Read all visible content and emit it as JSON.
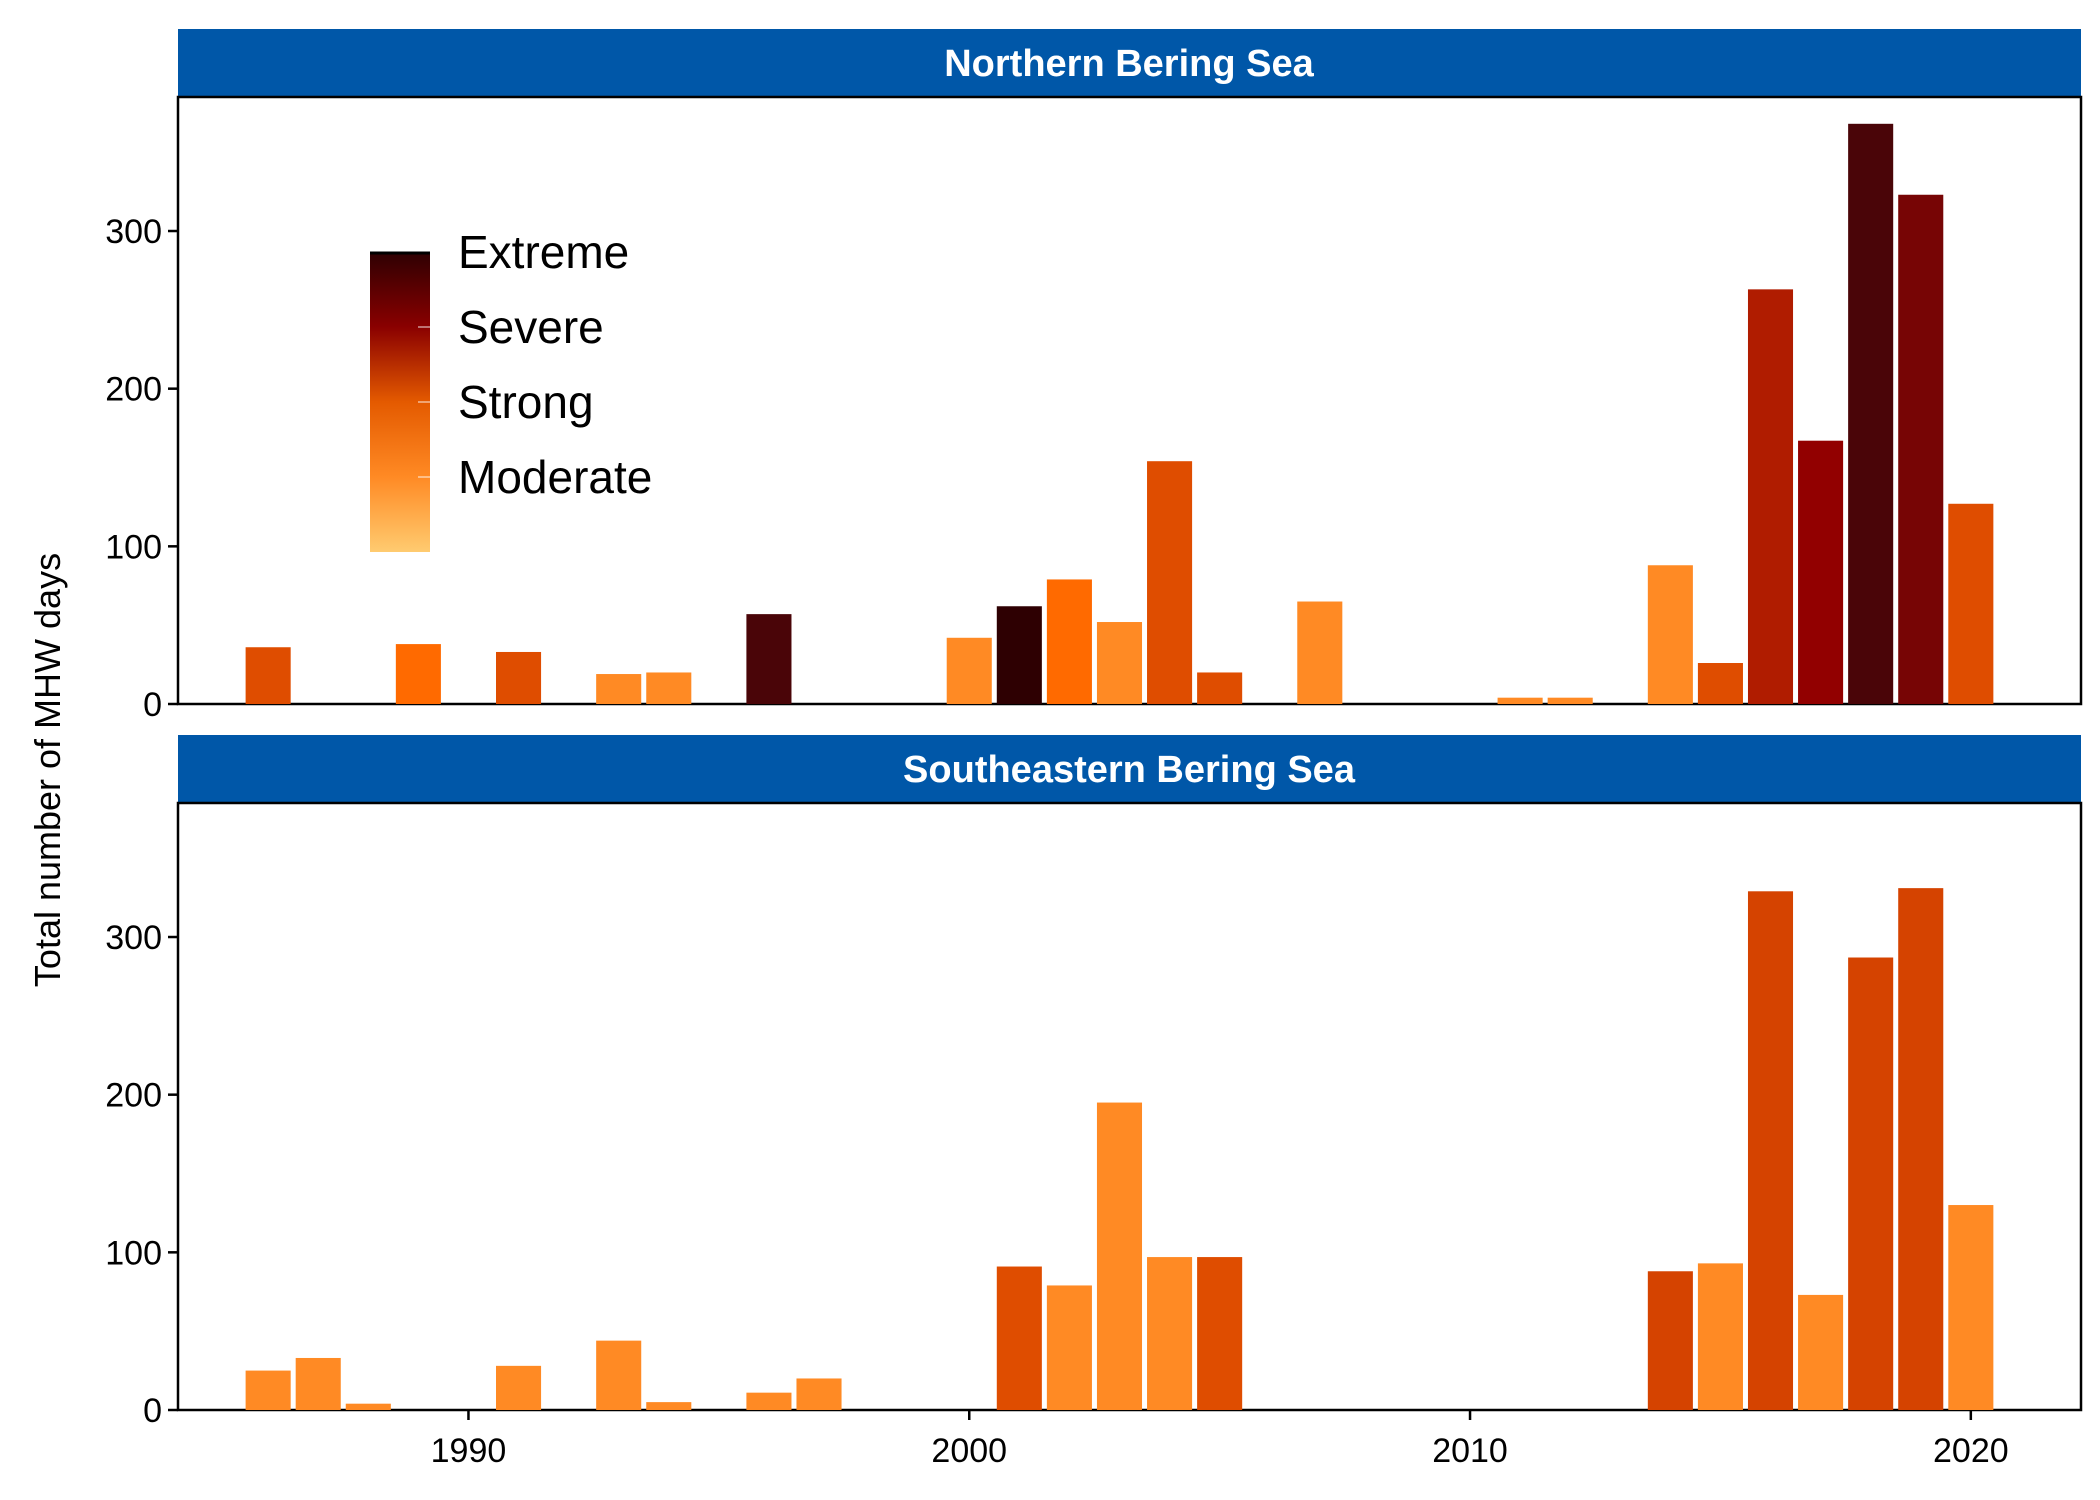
{
  "colors": {
    "strip": "#0057A8",
    "strip_text": "#ffffff",
    "moderate": "#FF8A24",
    "strong": "#DF4D00",
    "strong_orange": "#FF6A00",
    "strong_dark": "#D54300",
    "severe": "#B01C00",
    "severe_dark": "#920000",
    "severe_deep": "#770505",
    "extreme": "#4A0508",
    "extreme_deep": "#2E0002",
    "legend_gradient": [
      "#2E0002",
      "#8A0000",
      "#E45A00",
      "#FF8A24",
      "#FFCB70"
    ]
  },
  "chart_data": {
    "type": "bar",
    "ylabel": "Total number of MHW days",
    "xlim": [
      1984.2,
      2022.2
    ],
    "ylim": [
      0,
      385
    ],
    "xticks": [
      1990,
      2000,
      2010,
      2020
    ],
    "xtick_labels": [
      "1990",
      "2000",
      "2010",
      "2020"
    ],
    "yticks": [
      0,
      100,
      200,
      300
    ],
    "ytick_labels": [
      "0",
      "100",
      "200",
      "300"
    ],
    "legend": {
      "placement": "top-left inside top panel",
      "entries": [
        "Extreme",
        "Severe",
        "Strong",
        "Moderate"
      ]
    },
    "panels": [
      {
        "title": "Northern Bering Sea",
        "bars": [
          {
            "x": 1986,
            "value": 36,
            "category": "strong"
          },
          {
            "x": 1989,
            "value": 38,
            "category": "strong_orange"
          },
          {
            "x": 1991,
            "value": 33,
            "category": "strong"
          },
          {
            "x": 1993,
            "value": 19,
            "category": "moderate"
          },
          {
            "x": 1994,
            "value": 20,
            "category": "moderate"
          },
          {
            "x": 1996,
            "value": 57,
            "category": "extreme"
          },
          {
            "x": 2000,
            "value": 42,
            "category": "moderate"
          },
          {
            "x": 2001,
            "value": 62,
            "category": "extreme_deep"
          },
          {
            "x": 2002,
            "value": 79,
            "category": "strong_orange"
          },
          {
            "x": 2003,
            "value": 52,
            "category": "moderate"
          },
          {
            "x": 2004,
            "value": 154,
            "category": "strong"
          },
          {
            "x": 2005,
            "value": 20,
            "category": "strong"
          },
          {
            "x": 2007,
            "value": 65,
            "category": "moderate"
          },
          {
            "x": 2011,
            "value": 4,
            "category": "moderate"
          },
          {
            "x": 2012,
            "value": 4,
            "category": "moderate"
          },
          {
            "x": 2014,
            "value": 88,
            "category": "moderate"
          },
          {
            "x": 2015,
            "value": 26,
            "category": "strong"
          },
          {
            "x": 2016,
            "value": 263,
            "category": "severe"
          },
          {
            "x": 2017,
            "value": 167,
            "category": "severe_dark"
          },
          {
            "x": 2018,
            "value": 368,
            "category": "extreme"
          },
          {
            "x": 2019,
            "value": 323,
            "category": "severe_deep"
          },
          {
            "x": 2020,
            "value": 127,
            "category": "strong"
          }
        ]
      },
      {
        "title": "Southeastern Bering Sea",
        "bars": [
          {
            "x": 1986,
            "value": 25,
            "category": "moderate"
          },
          {
            "x": 1987,
            "value": 33,
            "category": "moderate"
          },
          {
            "x": 1988,
            "value": 4,
            "category": "moderate"
          },
          {
            "x": 1991,
            "value": 28,
            "category": "moderate"
          },
          {
            "x": 1993,
            "value": 44,
            "category": "moderate"
          },
          {
            "x": 1994,
            "value": 5,
            "category": "moderate"
          },
          {
            "x": 1996,
            "value": 11,
            "category": "moderate"
          },
          {
            "x": 1997,
            "value": 20,
            "category": "moderate"
          },
          {
            "x": 2001,
            "value": 91,
            "category": "strong"
          },
          {
            "x": 2002,
            "value": 79,
            "category": "moderate"
          },
          {
            "x": 2003,
            "value": 195,
            "category": "moderate"
          },
          {
            "x": 2004,
            "value": 97,
            "category": "moderate"
          },
          {
            "x": 2005,
            "value": 97,
            "category": "strong"
          },
          {
            "x": 2014,
            "value": 88,
            "category": "strong_dark"
          },
          {
            "x": 2015,
            "value": 93,
            "category": "moderate"
          },
          {
            "x": 2016,
            "value": 329,
            "category": "strong_dark"
          },
          {
            "x": 2017,
            "value": 73,
            "category": "moderate"
          },
          {
            "x": 2018,
            "value": 287,
            "category": "strong_dark"
          },
          {
            "x": 2019,
            "value": 331,
            "category": "strong_dark"
          },
          {
            "x": 2020,
            "value": 130,
            "category": "moderate"
          }
        ]
      }
    ]
  }
}
